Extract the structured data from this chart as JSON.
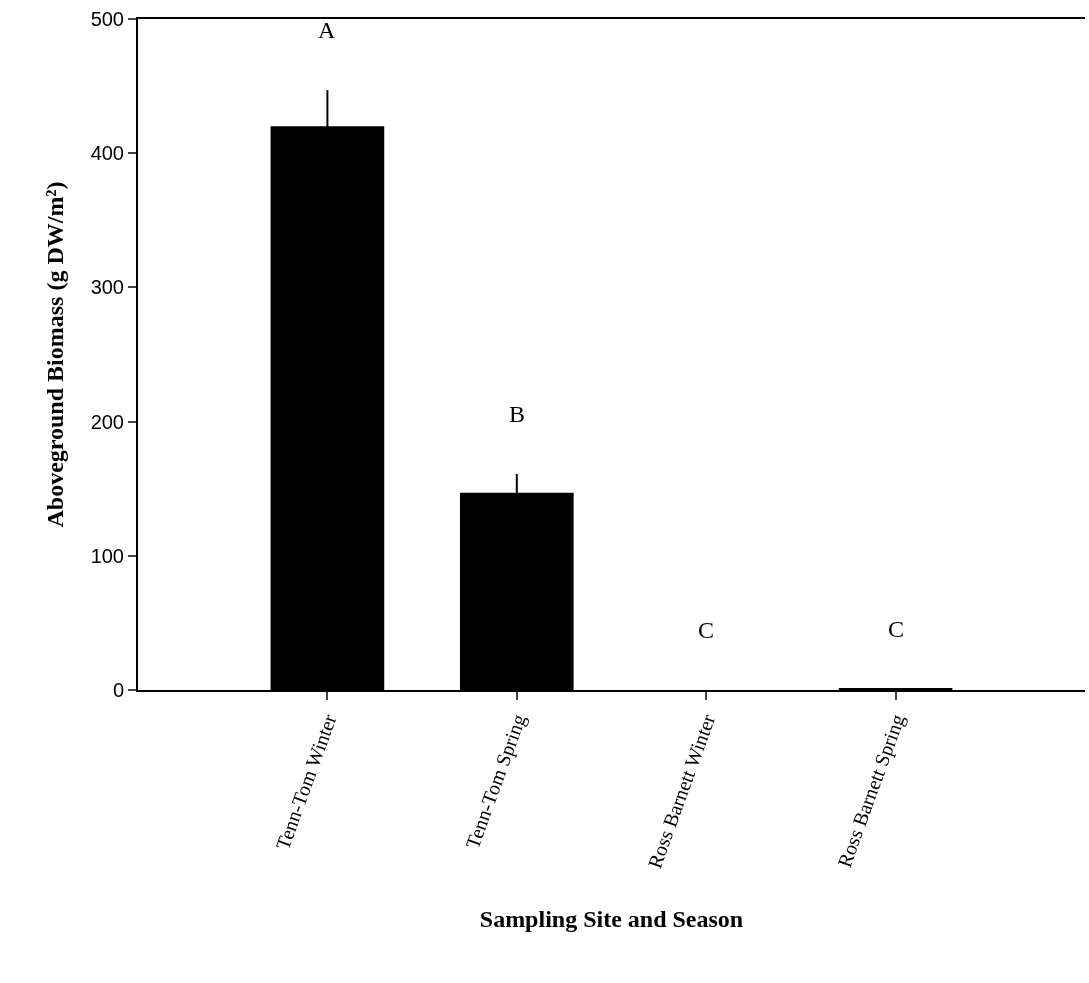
{
  "chart_data": {
    "type": "bar",
    "xlabel": "Sampling Site and Season",
    "ylabel": "Aboveground Biomass (g DW/m²)",
    "categories": [
      "Tenn-Tom Winter",
      "Tenn-Tom Spring",
      "Ross Barnett Winter",
      "Ross Barnett Spring"
    ],
    "values": [
      420,
      147,
      0,
      1
    ],
    "errors": [
      27,
      14,
      null,
      null
    ],
    "color": "#000000",
    "ylim": [
      0,
      500
    ],
    "yticks": [
      0,
      100,
      200,
      300,
      400,
      500
    ],
    "grid": false,
    "annotations": [
      "A",
      "B",
      "C",
      "C"
    ]
  }
}
